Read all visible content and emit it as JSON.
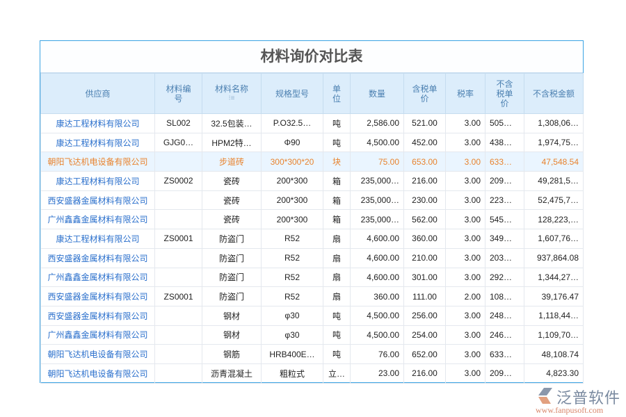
{
  "title": "材料询价对比表",
  "columns": [
    "供应商",
    "材料编号",
    "材料名称",
    "规格型号",
    "单位",
    "数量",
    "含税单价",
    "税率",
    "不含税单价",
    "不含税金额"
  ],
  "column_lines": [
    [
      "供应商"
    ],
    [
      "材料编",
      "号"
    ],
    [
      "材料名称"
    ],
    [
      "规格型号"
    ],
    [
      "单",
      "位"
    ],
    [
      "数量"
    ],
    [
      "含税单",
      "价"
    ],
    [
      "税率"
    ],
    [
      "不含",
      "税单",
      "价"
    ],
    [
      "不含税金额"
    ]
  ],
  "sort_icon": "sort-icon",
  "highlight_row": 2,
  "rows": [
    [
      "康达工程材料有限公司",
      "SL002",
      "32.5包装…",
      "P.O32.5…",
      "吨",
      "2,586.00",
      "521.00",
      "3.00",
      "505…",
      "1,308,06…"
    ],
    [
      "康达工程材料有限公司",
      "GJG0…",
      "HPM2特…",
      "Φ90",
      "吨",
      "4,500.00",
      "452.00",
      "3.00",
      "438…",
      "1,974,75…"
    ],
    [
      "朝阳飞达机电设备有限公司",
      "",
      "步道砖",
      "300*300*20",
      "块",
      "75.00",
      "653.00",
      "3.00",
      "633…",
      "47,548.54"
    ],
    [
      "康达工程材料有限公司",
      "ZS0002",
      "瓷砖",
      "200*300",
      "箱",
      "235,000…",
      "216.00",
      "3.00",
      "209…",
      "49,281,5…"
    ],
    [
      "西安盛器金属材料有限公司",
      "",
      "瓷砖",
      "200*300",
      "箱",
      "235,000…",
      "230.00",
      "3.00",
      "223…",
      "52,475,7…"
    ],
    [
      "广州鑫鑫金属材料有限公司",
      "",
      "瓷砖",
      "200*300",
      "箱",
      "235,000…",
      "562.00",
      "3.00",
      "545…",
      "128,223,…"
    ],
    [
      "康达工程材料有限公司",
      "ZS0001",
      "防盗门",
      "R52",
      "扇",
      "4,600.00",
      "360.00",
      "3.00",
      "349…",
      "1,607,76…"
    ],
    [
      "西安盛器金属材料有限公司",
      "",
      "防盗门",
      "R52",
      "扇",
      "4,600.00",
      "210.00",
      "3.00",
      "203…",
      "937,864.08"
    ],
    [
      "广州鑫鑫金属材料有限公司",
      "",
      "防盗门",
      "R52",
      "扇",
      "4,600.00",
      "301.00",
      "3.00",
      "292…",
      "1,344,27…"
    ],
    [
      "西安盛器金属材料有限公司",
      "ZS0001",
      "防盗门",
      "R52",
      "扇",
      "360.00",
      "111.00",
      "2.00",
      "108…",
      "39,176.47"
    ],
    [
      "西安盛器金属材料有限公司",
      "",
      "钢材",
      "φ30",
      "吨",
      "4,500.00",
      "256.00",
      "3.00",
      "248…",
      "1,118,44…"
    ],
    [
      "广州鑫鑫金属材料有限公司",
      "",
      "钢材",
      "φ30",
      "吨",
      "4,500.00",
      "254.00",
      "3.00",
      "246…",
      "1,109,70…"
    ],
    [
      "朝阳飞达机电设备有限公司",
      "",
      "钢筋",
      "HRB400E…",
      "吨",
      "76.00",
      "652.00",
      "3.00",
      "633…",
      "48,108.74"
    ],
    [
      "朝阳飞达机电设备有限公司",
      "",
      "沥青混凝土",
      "粗粒式",
      "立…",
      "23.00",
      "216.00",
      "3.00",
      "209…",
      "4,823.30"
    ]
  ],
  "logo": {
    "name": "泛普软件",
    "url": "www.fanpusoft.com"
  },
  "colors": {
    "accent": "#3aa3e3",
    "header_bg": "#dcedfb",
    "link": "#2a6fcc",
    "highlight": "#e8832e"
  }
}
